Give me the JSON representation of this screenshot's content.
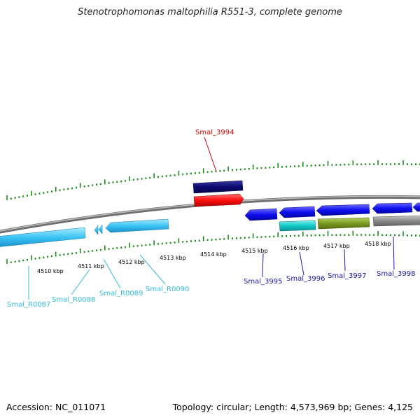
{
  "title": "Stenotrophomonas maltophilia R551-3, complete genome",
  "footer": {
    "accession": "Accession: NC_011071",
    "summary": "Topology: circular; Length: 4,573,969 bp; Genes: 4,125"
  },
  "colors": {
    "backbone": "#808080",
    "tick": "#1a8a1a",
    "rna_label": "#33bbdd",
    "gene_label": "#1a1aaa",
    "highlight_label": "#cc0000"
  },
  "scale_labels": [
    "4510 kbp",
    "4511 kbp",
    "4512 kbp",
    "4513 kbp",
    "4514 kbp",
    "4515 kbp",
    "4516 kbp",
    "4517 kbp",
    "4518 kbp"
  ],
  "genes": {
    "Smal_3994": "Smal_3994",
    "Smal_3995": "Smal_3995",
    "Smal_3996": "Smal_3996",
    "Smal_3997": "Smal_3997",
    "Smal_3998": "Smal_3998",
    "Smal_R0087": "Smal_R0087",
    "Smal_R0088": "Smal_R0088",
    "Smal_R0089": "Smal_R0089",
    "Smal_R0090": "Smal_R0090"
  }
}
